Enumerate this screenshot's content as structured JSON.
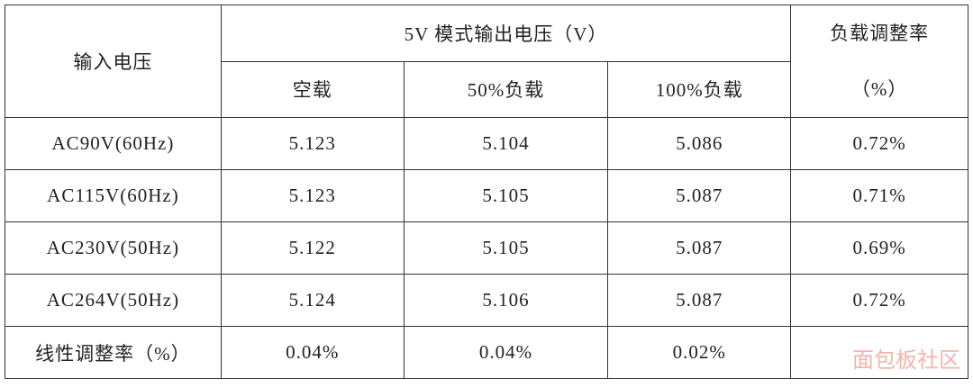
{
  "table": {
    "header": {
      "input": "输入电压",
      "group": "5V 模式输出电压（V）",
      "loads": [
        "空载",
        "50%负载",
        "100%负载"
      ],
      "regulation": [
        "负载调整率",
        "（%）"
      ]
    },
    "rows": [
      [
        "AC90V(60Hz)",
        "5.123",
        "5.104",
        "5.086",
        "0.72%"
      ],
      [
        "AC115V(60Hz)",
        "5.123",
        "5.105",
        "5.087",
        "0.71%"
      ],
      [
        "AC230V(50Hz)",
        "5.122",
        "5.105",
        "5.087",
        "0.69%"
      ],
      [
        "AC264V(50Hz)",
        "5.124",
        "5.106",
        "5.087",
        "0.72%"
      ],
      [
        "线性调整率（%）",
        "0.04%",
        "0.04%",
        "0.02%",
        ""
      ]
    ]
  },
  "watermark": "面包板社区"
}
